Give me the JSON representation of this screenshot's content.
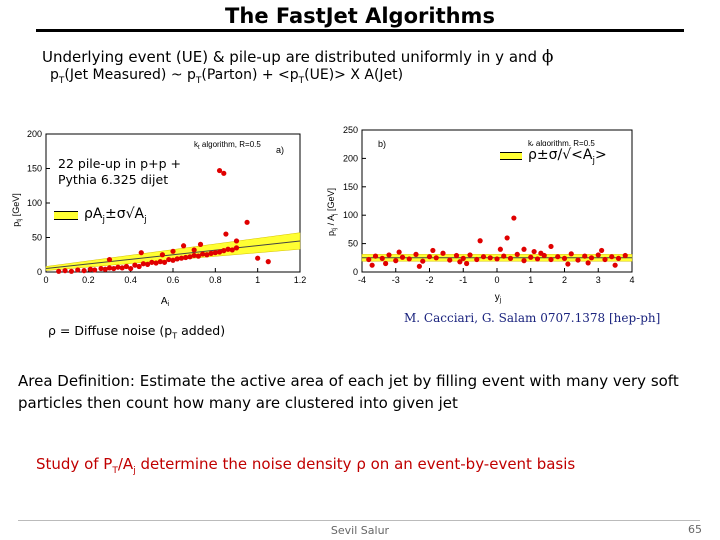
{
  "slide": {
    "title": "The FastJet Algorithms",
    "line1_main": "Underlying event (UE) & pile-up are distributed uniformly in y and ",
    "line1_phi": "ϕ",
    "line2": {
      "p1": "p",
      "s1": "T",
      "t1": "(Jet Measured) ~ p",
      "s2": "T",
      "t2": "(Parton) + <p",
      "s3": "T",
      "t3": "(UE)> X A(Jet)"
    },
    "overlay_left_1": "22 pile-up in p+p +",
    "overlay_left_2": "Pythia 6.325 dijet",
    "legend_left": "ρA",
    "legend_left_sub1": "j",
    "legend_left_mid": "±σ√A",
    "legend_left_sub2": "j",
    "legend_right": "ρ±σ/√<A",
    "legend_right_sub": "j",
    "legend_right_end": ">",
    "citation": "M. Cacciari, G. Salam 0707.1378 [hep-ph]",
    "rho_def_1": "ρ = Diffuse noise (p",
    "rho_def_sub": "T",
    "rho_def_2": " added)",
    "area_def": "Area Definition: Estimate the active area of each jet by filling event with many very soft particles then count how many are clustered into given jet",
    "study_1": "Study of  P",
    "study_sub1": "T",
    "study_2": "/A",
    "study_sub2": "j",
    "study_3": " determine the noise density  ρ on an event-by-event basis",
    "footer_author": "Sevil Salur",
    "page_number": "65"
  },
  "chart_data": [
    {
      "type": "scatter",
      "panel_label": "a)",
      "legend_title": "k",
      "legend_title_sub": "t",
      "legend_title_rest": " algorithm, R=0.5",
      "xlabel": "A",
      "xlabel_sub": "j",
      "ylabel": "p",
      "ylabel_sub": "tj",
      "ylabel_unit": " [GeV]",
      "xlim": [
        0,
        1.2
      ],
      "ylim": [
        0,
        200
      ],
      "xticks": [
        "0",
        "0.2",
        "0.4",
        "0.6",
        "0.8",
        "1",
        "1.2"
      ],
      "yticks": [
        "0",
        "50",
        "100",
        "150",
        "200"
      ],
      "band": {
        "x": [
          0,
          1.2
        ],
        "center": [
          5,
          45
        ],
        "halfwidth": [
          3,
          12
        ]
      },
      "points": [
        [
          0.06,
          1
        ],
        [
          0.09,
          2
        ],
        [
          0.12,
          1
        ],
        [
          0.15,
          3
        ],
        [
          0.18,
          2
        ],
        [
          0.21,
          4
        ],
        [
          0.23,
          3
        ],
        [
          0.26,
          5
        ],
        [
          0.28,
          4
        ],
        [
          0.3,
          6
        ],
        [
          0.32,
          5
        ],
        [
          0.34,
          7
        ],
        [
          0.36,
          6
        ],
        [
          0.38,
          8
        ],
        [
          0.4,
          5
        ],
        [
          0.42,
          10
        ],
        [
          0.44,
          8
        ],
        [
          0.46,
          12
        ],
        [
          0.48,
          11
        ],
        [
          0.5,
          14
        ],
        [
          0.52,
          13
        ],
        [
          0.54,
          15
        ],
        [
          0.56,
          14
        ],
        [
          0.58,
          18
        ],
        [
          0.6,
          17
        ],
        [
          0.62,
          19
        ],
        [
          0.64,
          20
        ],
        [
          0.66,
          21
        ],
        [
          0.68,
          22
        ],
        [
          0.7,
          24
        ],
        [
          0.72,
          23
        ],
        [
          0.74,
          26
        ],
        [
          0.76,
          25
        ],
        [
          0.78,
          27
        ],
        [
          0.8,
          28
        ],
        [
          0.82,
          29
        ],
        [
          0.84,
          31
        ],
        [
          0.86,
          33
        ],
        [
          0.88,
          32
        ],
        [
          0.9,
          35
        ],
        [
          0.3,
          18
        ],
        [
          0.45,
          28
        ],
        [
          0.55,
          25
        ],
        [
          0.65,
          38
        ],
        [
          0.7,
          32
        ],
        [
          0.85,
          55
        ],
        [
          0.82,
          147
        ],
        [
          0.84,
          143
        ],
        [
          1.0,
          20
        ],
        [
          0.9,
          45
        ],
        [
          1.05,
          15
        ],
        [
          0.6,
          30
        ],
        [
          0.73,
          40
        ],
        [
          0.95,
          72
        ]
      ]
    },
    {
      "type": "scatter",
      "panel_label": "b)",
      "legend_title": "k",
      "legend_title_sub": "t",
      "legend_title_rest": " algorithm, R=0.5",
      "xlabel": "y",
      "xlabel_sub": "j",
      "ylabel": "p",
      "ylabel_sub": "tj",
      "ylabel_unit": " / A",
      "ylabel_sub2": "j",
      "ylabel_unit2": " [GeV]",
      "xlim": [
        -4,
        4
      ],
      "ylim": [
        0,
        250
      ],
      "xticks": [
        "-4",
        "-3",
        "-2",
        "-1",
        "0",
        "1",
        "2",
        "3",
        "4"
      ],
      "yticks": [
        "0",
        "50",
        "100",
        "150",
        "200",
        "250"
      ],
      "band": {
        "center": 25,
        "halfwidth": 6
      },
      "points": [
        [
          -3.8,
          22
        ],
        [
          -3.6,
          28
        ],
        [
          -3.4,
          24
        ],
        [
          -3.2,
          30
        ],
        [
          -3.0,
          20
        ],
        [
          -2.8,
          26
        ],
        [
          -2.6,
          23
        ],
        [
          -2.4,
          31
        ],
        [
          -2.2,
          19
        ],
        [
          -2.0,
          27
        ],
        [
          -1.8,
          25
        ],
        [
          -1.6,
          33
        ],
        [
          -1.4,
          21
        ],
        [
          -1.2,
          29
        ],
        [
          -1.0,
          24
        ],
        [
          -0.8,
          30
        ],
        [
          -0.6,
          22
        ],
        [
          -0.4,
          27
        ],
        [
          -0.2,
          25
        ],
        [
          0.0,
          23
        ],
        [
          0.2,
          28
        ],
        [
          0.4,
          24
        ],
        [
          0.6,
          31
        ],
        [
          0.8,
          20
        ],
        [
          1.0,
          26
        ],
        [
          1.2,
          23
        ],
        [
          1.4,
          29
        ],
        [
          1.6,
          22
        ],
        [
          1.8,
          27
        ],
        [
          2.0,
          24
        ],
        [
          2.2,
          32
        ],
        [
          2.4,
          21
        ],
        [
          2.6,
          28
        ],
        [
          2.8,
          25
        ],
        [
          3.0,
          30
        ],
        [
          3.2,
          22
        ],
        [
          3.4,
          27
        ],
        [
          3.6,
          24
        ],
        [
          3.8,
          29
        ],
        [
          -3.7,
          12
        ],
        [
          -2.9,
          35
        ],
        [
          -1.9,
          38
        ],
        [
          -0.9,
          15
        ],
        [
          0.1,
          40
        ],
        [
          1.1,
          36
        ],
        [
          2.1,
          14
        ],
        [
          3.1,
          38
        ],
        [
          -2.3,
          10
        ],
        [
          -0.5,
          55
        ],
        [
          0.3,
          60
        ],
        [
          0.5,
          95
        ],
        [
          0.8,
          40
        ],
        [
          1.3,
          33
        ],
        [
          1.6,
          45
        ],
        [
          -1.1,
          18
        ],
        [
          2.7,
          16
        ],
        [
          3.5,
          12
        ],
        [
          -3.3,
          15
        ]
      ]
    }
  ]
}
